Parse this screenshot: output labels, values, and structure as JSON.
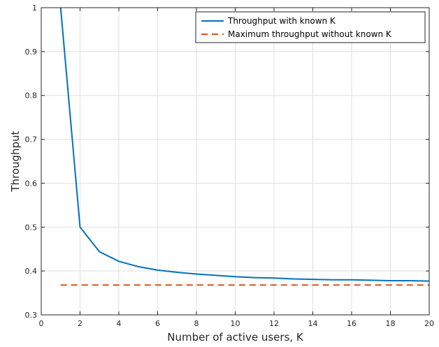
{
  "colors": {
    "series_1": "#0072BD",
    "series_2": "#D95319",
    "grid": "#dfdfdf",
    "axes": "#262626"
  },
  "chart_data": {
    "type": "line",
    "title": "",
    "xlabel": "Number of active users, K",
    "ylabel": "Throughput",
    "xlim": [
      0,
      20
    ],
    "ylim": [
      0.3,
      1
    ],
    "xticks": [
      0,
      2,
      4,
      6,
      8,
      10,
      12,
      14,
      16,
      18,
      20
    ],
    "xtick_labels": [
      "0",
      "2",
      "4",
      "6",
      "8",
      "10",
      "12",
      "14",
      "16",
      "18",
      "20"
    ],
    "yticks": [
      0.3,
      0.4,
      0.5,
      0.6,
      0.7,
      0.8,
      0.9,
      1
    ],
    "ytick_labels": [
      "0.3",
      "0.4",
      "0.5",
      "0.6",
      "0.7",
      "0.8",
      "0.9",
      "1"
    ],
    "grid": true,
    "legend_position": "top-right",
    "series": [
      {
        "name": "Throughput with known K",
        "style": "solid",
        "x": [
          1,
          2,
          3,
          4,
          5,
          6,
          7,
          8,
          9,
          10,
          11,
          12,
          13,
          14,
          15,
          16,
          17,
          18,
          19,
          20
        ],
        "y": [
          1.0,
          0.5,
          0.444,
          0.422,
          0.41,
          0.402,
          0.397,
          0.393,
          0.39,
          0.387,
          0.385,
          0.384,
          0.382,
          0.381,
          0.38,
          0.38,
          0.379,
          0.378,
          0.378,
          0.377
        ]
      },
      {
        "name": "Maximum throughput without known K",
        "style": "dashed",
        "x": [
          1,
          20
        ],
        "y": [
          0.368,
          0.368
        ]
      }
    ]
  }
}
